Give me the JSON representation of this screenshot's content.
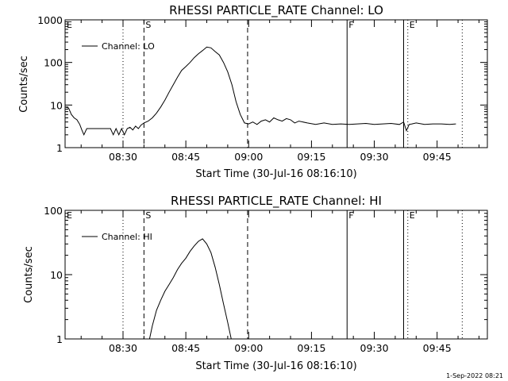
{
  "footer_text": "1-Sep-2022 08:21",
  "chart_data": [
    {
      "type": "line",
      "title": "RHESSI PARTICLE_RATE Channel: LO",
      "xlabel": "Start Time (30-Jul-16 08:16:10)",
      "ylabel": "Counts/sec",
      "yscale": "log",
      "ylim": [
        1,
        1000
      ],
      "xlim": [
        "08:16:10",
        "09:57:00"
      ],
      "x_ticks": [
        "08:30",
        "08:45",
        "09:00",
        "09:15",
        "09:30",
        "09:45"
      ],
      "y_ticks": [
        "1",
        "10",
        "100",
        "1000"
      ],
      "legend": {
        "label": "Channel: LO",
        "placement": "top-left"
      },
      "markers": [
        {
          "label": "E",
          "time": "08:16:10",
          "style": "dotted"
        },
        {
          "label": "",
          "time": "08:30:00",
          "style": "dotted"
        },
        {
          "label": "S",
          "time": "08:35:00",
          "style": "dashed"
        },
        {
          "label": "",
          "time": "08:59:45",
          "style": "dashed"
        },
        {
          "label": "F",
          "time": "09:23:30",
          "style": "solid"
        },
        {
          "label": "",
          "time": "09:37:00",
          "style": "solid"
        },
        {
          "label": "E",
          "time": "09:38:00",
          "style": "dotted"
        },
        {
          "label": "",
          "time": "09:51:00",
          "style": "dotted"
        }
      ],
      "series": [
        {
          "x": [
            "08:16:10",
            "08:17:00",
            "08:17:40",
            "08:18:20",
            "08:19:00",
            "08:19:40",
            "08:20:10",
            "08:20:40",
            "08:21:20",
            "08:22:00",
            "08:23:00",
            "08:24:00",
            "08:25:00",
            "08:26:00",
            "08:27:00",
            "08:27:40",
            "08:28:20",
            "08:29:00",
            "08:29:40",
            "08:30:20",
            "08:31:00",
            "08:31:40",
            "08:32:20",
            "08:33:00",
            "08:33:40",
            "08:34:20",
            "08:35:00",
            "08:36:00",
            "08:37:00",
            "08:38:00",
            "08:39:00",
            "08:40:00",
            "08:41:00",
            "08:42:00",
            "08:43:00",
            "08:44:00",
            "08:45:00",
            "08:46:00",
            "08:47:00",
            "08:48:00",
            "08:49:00",
            "08:50:00",
            "08:51:00",
            "08:52:00",
            "08:53:00",
            "08:54:00",
            "08:55:00",
            "08:56:00",
            "08:57:00",
            "08:58:00",
            "08:59:00",
            "09:00:00",
            "09:01:00",
            "09:02:00",
            "09:03:00",
            "09:04:00",
            "09:05:00",
            "09:06:00",
            "09:07:00",
            "09:08:00",
            "09:09:00",
            "09:10:00",
            "09:11:00",
            "09:12:00",
            "09:14:00",
            "09:16:00",
            "09:18:00",
            "09:20:00",
            "09:22:00",
            "09:24:00",
            "09:26:00",
            "09:28:00",
            "09:30:00",
            "09:32:00",
            "09:34:00",
            "09:36:00",
            "09:37:00",
            "09:37:40",
            "09:38:20",
            "09:39:00",
            "09:40:00",
            "09:42:00",
            "09:44:00",
            "09:46:00",
            "09:48:00",
            "09:49:30"
          ],
          "y": [
            9,
            8.5,
            6,
            5,
            4.5,
            3.5,
            2.6,
            2,
            2.8,
            2.8,
            2.8,
            2.8,
            2.8,
            2.8,
            2.8,
            2,
            2.8,
            2,
            2.8,
            2,
            2.8,
            3,
            2.6,
            3.2,
            2.8,
            3.4,
            3.8,
            4.2,
            5,
            6.5,
            9,
            13,
            20,
            30,
            45,
            65,
            80,
            100,
            130,
            160,
            190,
            230,
            220,
            180,
            150,
            100,
            60,
            30,
            12,
            6,
            3.8,
            3.6,
            4,
            3.5,
            4.2,
            4.5,
            4,
            5,
            4.5,
            4.2,
            4.8,
            4.5,
            3.8,
            4.2,
            3.8,
            3.5,
            3.8,
            3.5,
            3.6,
            3.5,
            3.6,
            3.7,
            3.5,
            3.6,
            3.7,
            3.5,
            4,
            2.5,
            3.5,
            3.6,
            3.8,
            3.5,
            3.6,
            3.6,
            3.5,
            3.6
          ]
        }
      ]
    },
    {
      "type": "line",
      "title": "RHESSI PARTICLE_RATE Channel: HI",
      "xlabel": "Start Time (30-Jul-16 08:16:10)",
      "ylabel": "Counts/sec",
      "yscale": "log",
      "ylim": [
        1,
        100
      ],
      "xlim": [
        "08:16:10",
        "09:57:00"
      ],
      "x_ticks": [
        "08:30",
        "08:45",
        "09:00",
        "09:15",
        "09:30",
        "09:45"
      ],
      "y_ticks": [
        "1",
        "10",
        "100"
      ],
      "legend": {
        "label": "Channel: HI",
        "placement": "top-left"
      },
      "markers": [
        {
          "label": "E",
          "time": "08:16:10",
          "style": "dotted"
        },
        {
          "label": "",
          "time": "08:30:00",
          "style": "dotted"
        },
        {
          "label": "S",
          "time": "08:35:00",
          "style": "dashed"
        },
        {
          "label": "",
          "time": "08:59:45",
          "style": "dashed"
        },
        {
          "label": "F",
          "time": "09:23:30",
          "style": "solid"
        },
        {
          "label": "",
          "time": "09:37:00",
          "style": "solid"
        },
        {
          "label": "E",
          "time": "09:38:00",
          "style": "dotted"
        },
        {
          "label": "",
          "time": "09:51:00",
          "style": "dotted"
        }
      ],
      "series": [
        {
          "x": [
            "08:36:20",
            "08:37:00",
            "08:38:00",
            "08:39:00",
            "08:40:00",
            "08:41:00",
            "08:42:00",
            "08:43:00",
            "08:44:00",
            "08:45:00",
            "08:46:00",
            "08:47:00",
            "08:48:00",
            "08:49:00",
            "08:50:00",
            "08:51:00",
            "08:52:00",
            "08:53:00",
            "08:54:00",
            "08:55:00",
            "08:55:50"
          ],
          "y": [
            1,
            1.6,
            2.8,
            4,
            5.5,
            7,
            9,
            12,
            15,
            18,
            23,
            28,
            33,
            36,
            30,
            22,
            13,
            7,
            3.5,
            1.8,
            1
          ]
        }
      ]
    }
  ]
}
